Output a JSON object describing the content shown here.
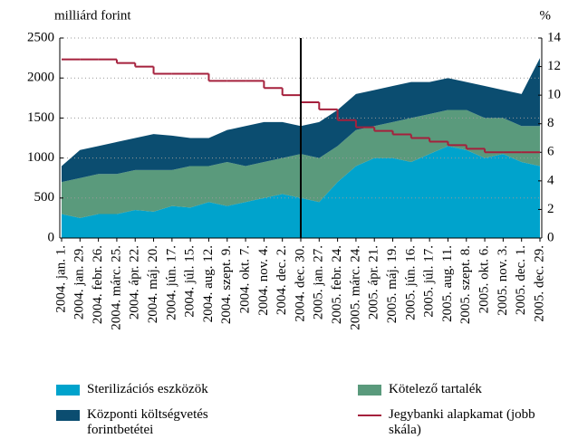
{
  "chart_data": {
    "type": "stacked_area_step",
    "y_label": "milliárd forint",
    "y2_label": "%",
    "categories": [
      "2004. jan. 1.",
      "2004. jan. 29.",
      "2004. febr. 26.",
      "2004. márc. 25.",
      "2004. ápr. 22.",
      "2004. máj. 20.",
      "2004. jún. 17.",
      "2004. júl. 15.",
      "2004. aug. 12.",
      "2004. szept. 9.",
      "2004. okt. 7.",
      "2004. nov. 4.",
      "2004. dec. 2.",
      "2004. dec. 30.",
      "2005. jan. 27.",
      "2005. febr. 24.",
      "2005. márc. 24.",
      "2005. ápr. 21.",
      "2005. máj. 19.",
      "2005. jún. 16.",
      "2005. júl. 17.",
      "2005. aug. 11.",
      "2005. szept. 8.",
      "2005. okt. 6.",
      "2005. nov. 3.",
      "2005. dec. 1.",
      "2005. dec. 29."
    ],
    "series": [
      {
        "name": "Sterilizációs eszközök",
        "color": "#00a3cc",
        "values": [
          300,
          250,
          300,
          300,
          350,
          330,
          400,
          380,
          450,
          400,
          450,
          500,
          550,
          500,
          450,
          700,
          900,
          1000,
          1000,
          950,
          1050,
          1150,
          1100,
          1000,
          1050,
          950,
          900
        ]
      },
      {
        "name": "Kötelező tartalék",
        "color": "#5a9a7c",
        "values": [
          400,
          500,
          500,
          500,
          500,
          520,
          450,
          520,
          450,
          550,
          450,
          450,
          450,
          550,
          550,
          450,
          450,
          400,
          450,
          550,
          500,
          450,
          500,
          500,
          450,
          450,
          500
        ]
      },
      {
        "name": "Központi költségvetés forintbetétei",
        "color": "#0b4d70",
        "values": [
          200,
          350,
          350,
          400,
          400,
          450,
          430,
          350,
          350,
          400,
          500,
          500,
          450,
          350,
          450,
          450,
          450,
          450,
          450,
          450,
          400,
          400,
          350,
          400,
          350,
          400,
          850
        ]
      },
      {
        "name": "Jegybanki alapkamat (jobb skála)",
        "color": "#a5203c",
        "axis": "y2",
        "step": true,
        "values": [
          12.5,
          12.5,
          12.5,
          12.25,
          12,
          11.5,
          11.5,
          11.5,
          11,
          11,
          11,
          10.5,
          10,
          9.5,
          9,
          8.25,
          7.75,
          7.5,
          7.25,
          7,
          6.75,
          6.5,
          6.25,
          6,
          6,
          6,
          6
        ]
      }
    ],
    "ylim": [
      0,
      2500
    ],
    "yticks": [
      0,
      500,
      1000,
      1500,
      2000,
      2500
    ],
    "y2lim": [
      0,
      14
    ],
    "y2ticks": [
      0,
      2,
      4,
      6,
      8,
      10,
      12,
      14
    ],
    "grid": true,
    "vertical_line_at": "2004. dec. 30."
  }
}
